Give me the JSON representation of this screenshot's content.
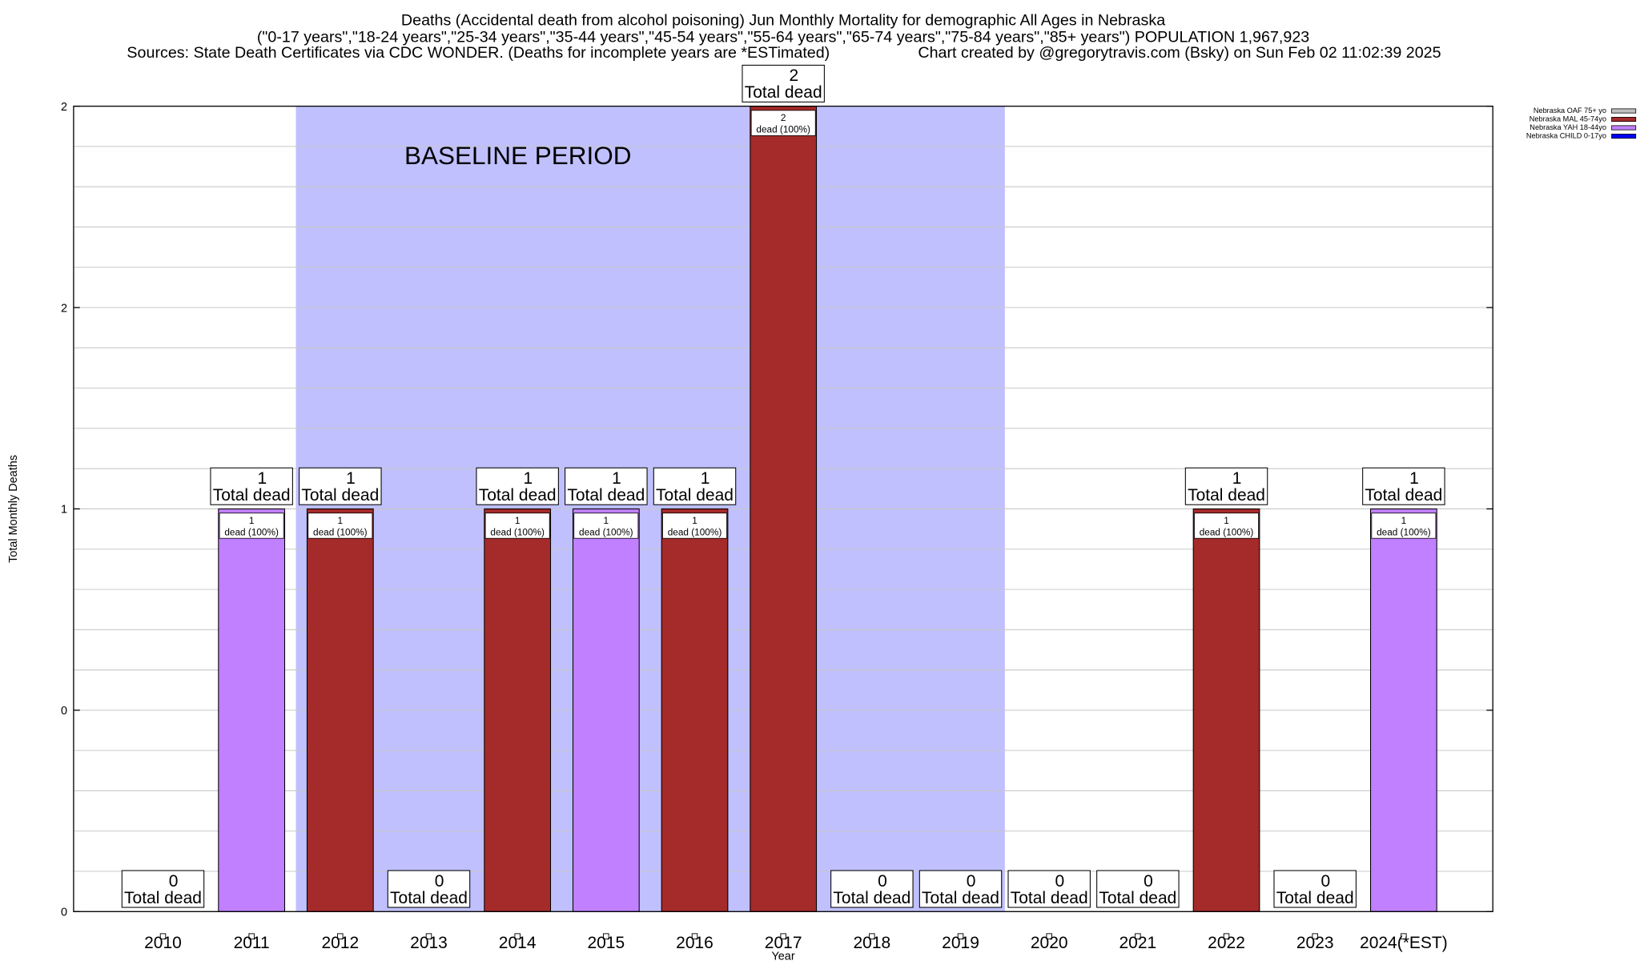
{
  "chart_data": {
    "type": "bar",
    "title": "Deaths (Accidental death from alcohol poisoning) Jun Monthly Mortality for demographic All Ages in Nebraska",
    "subtitle": "(\"0-17 years\",\"18-24 years\",\"25-34 years\",\"35-44 years\",\"45-54 years\",\"55-64 years\",\"65-74 years\",\"75-84 years\",\"85+ years\") POPULATION 1,967,923",
    "sources": "Sources: State Death Certificates via CDC WONDER. (Deaths for incomplete years are *ESTimated)",
    "credit": "Chart created by @gregorytravis.com (Bsky) on Sun Feb 02 11:02:39 2025",
    "xlabel": "Year",
    "ylabel": "Total Monthly Deaths",
    "ylim": [
      0,
      2
    ],
    "y_tick_labels": [
      "0",
      "0",
      "1",
      "2",
      "2"
    ],
    "grid": true,
    "annotation": "BASELINE PERIOD",
    "baseline_period": [
      "2012",
      "2019"
    ],
    "categories": [
      "2010",
      "2011",
      "2012",
      "2013",
      "2014",
      "2015",
      "2016",
      "2017",
      "2018",
      "2019",
      "2020",
      "2021",
      "2022",
      "2023",
      "2024(*EST)"
    ],
    "series": [
      {
        "name": "Nebraska OAF 75+ yo",
        "color": "#c0c0c0",
        "values": [
          0,
          0,
          0,
          0,
          0,
          0,
          0,
          0,
          0,
          0,
          0,
          0,
          0,
          0,
          0
        ]
      },
      {
        "name": "Nebraska MAL 45-74yo",
        "color": "#a52a2a",
        "values": [
          0,
          0,
          1,
          0,
          1,
          0,
          1,
          2,
          0,
          0,
          0,
          0,
          1,
          0,
          0
        ]
      },
      {
        "name": "Nebraska YAH 18-44yo",
        "color": "#c080ff",
        "values": [
          0,
          1,
          0,
          0,
          0,
          1,
          0,
          0,
          0,
          0,
          0,
          0,
          0,
          0,
          1
        ]
      },
      {
        "name": "Nebraska CHILD 0-17yo",
        "color": "#0000ff",
        "values": [
          0,
          0,
          0,
          0,
          0,
          0,
          0,
          0,
          0,
          0,
          0,
          0,
          0,
          0,
          0
        ]
      }
    ],
    "totals": [
      0,
      1,
      1,
      0,
      1,
      1,
      1,
      2,
      0,
      0,
      0,
      0,
      1,
      0,
      1
    ],
    "total_label": "Total dead",
    "bar_label_suffix": "dead (100%)",
    "legend_position": "top-right",
    "baseline_color": "#c0c0ff"
  }
}
